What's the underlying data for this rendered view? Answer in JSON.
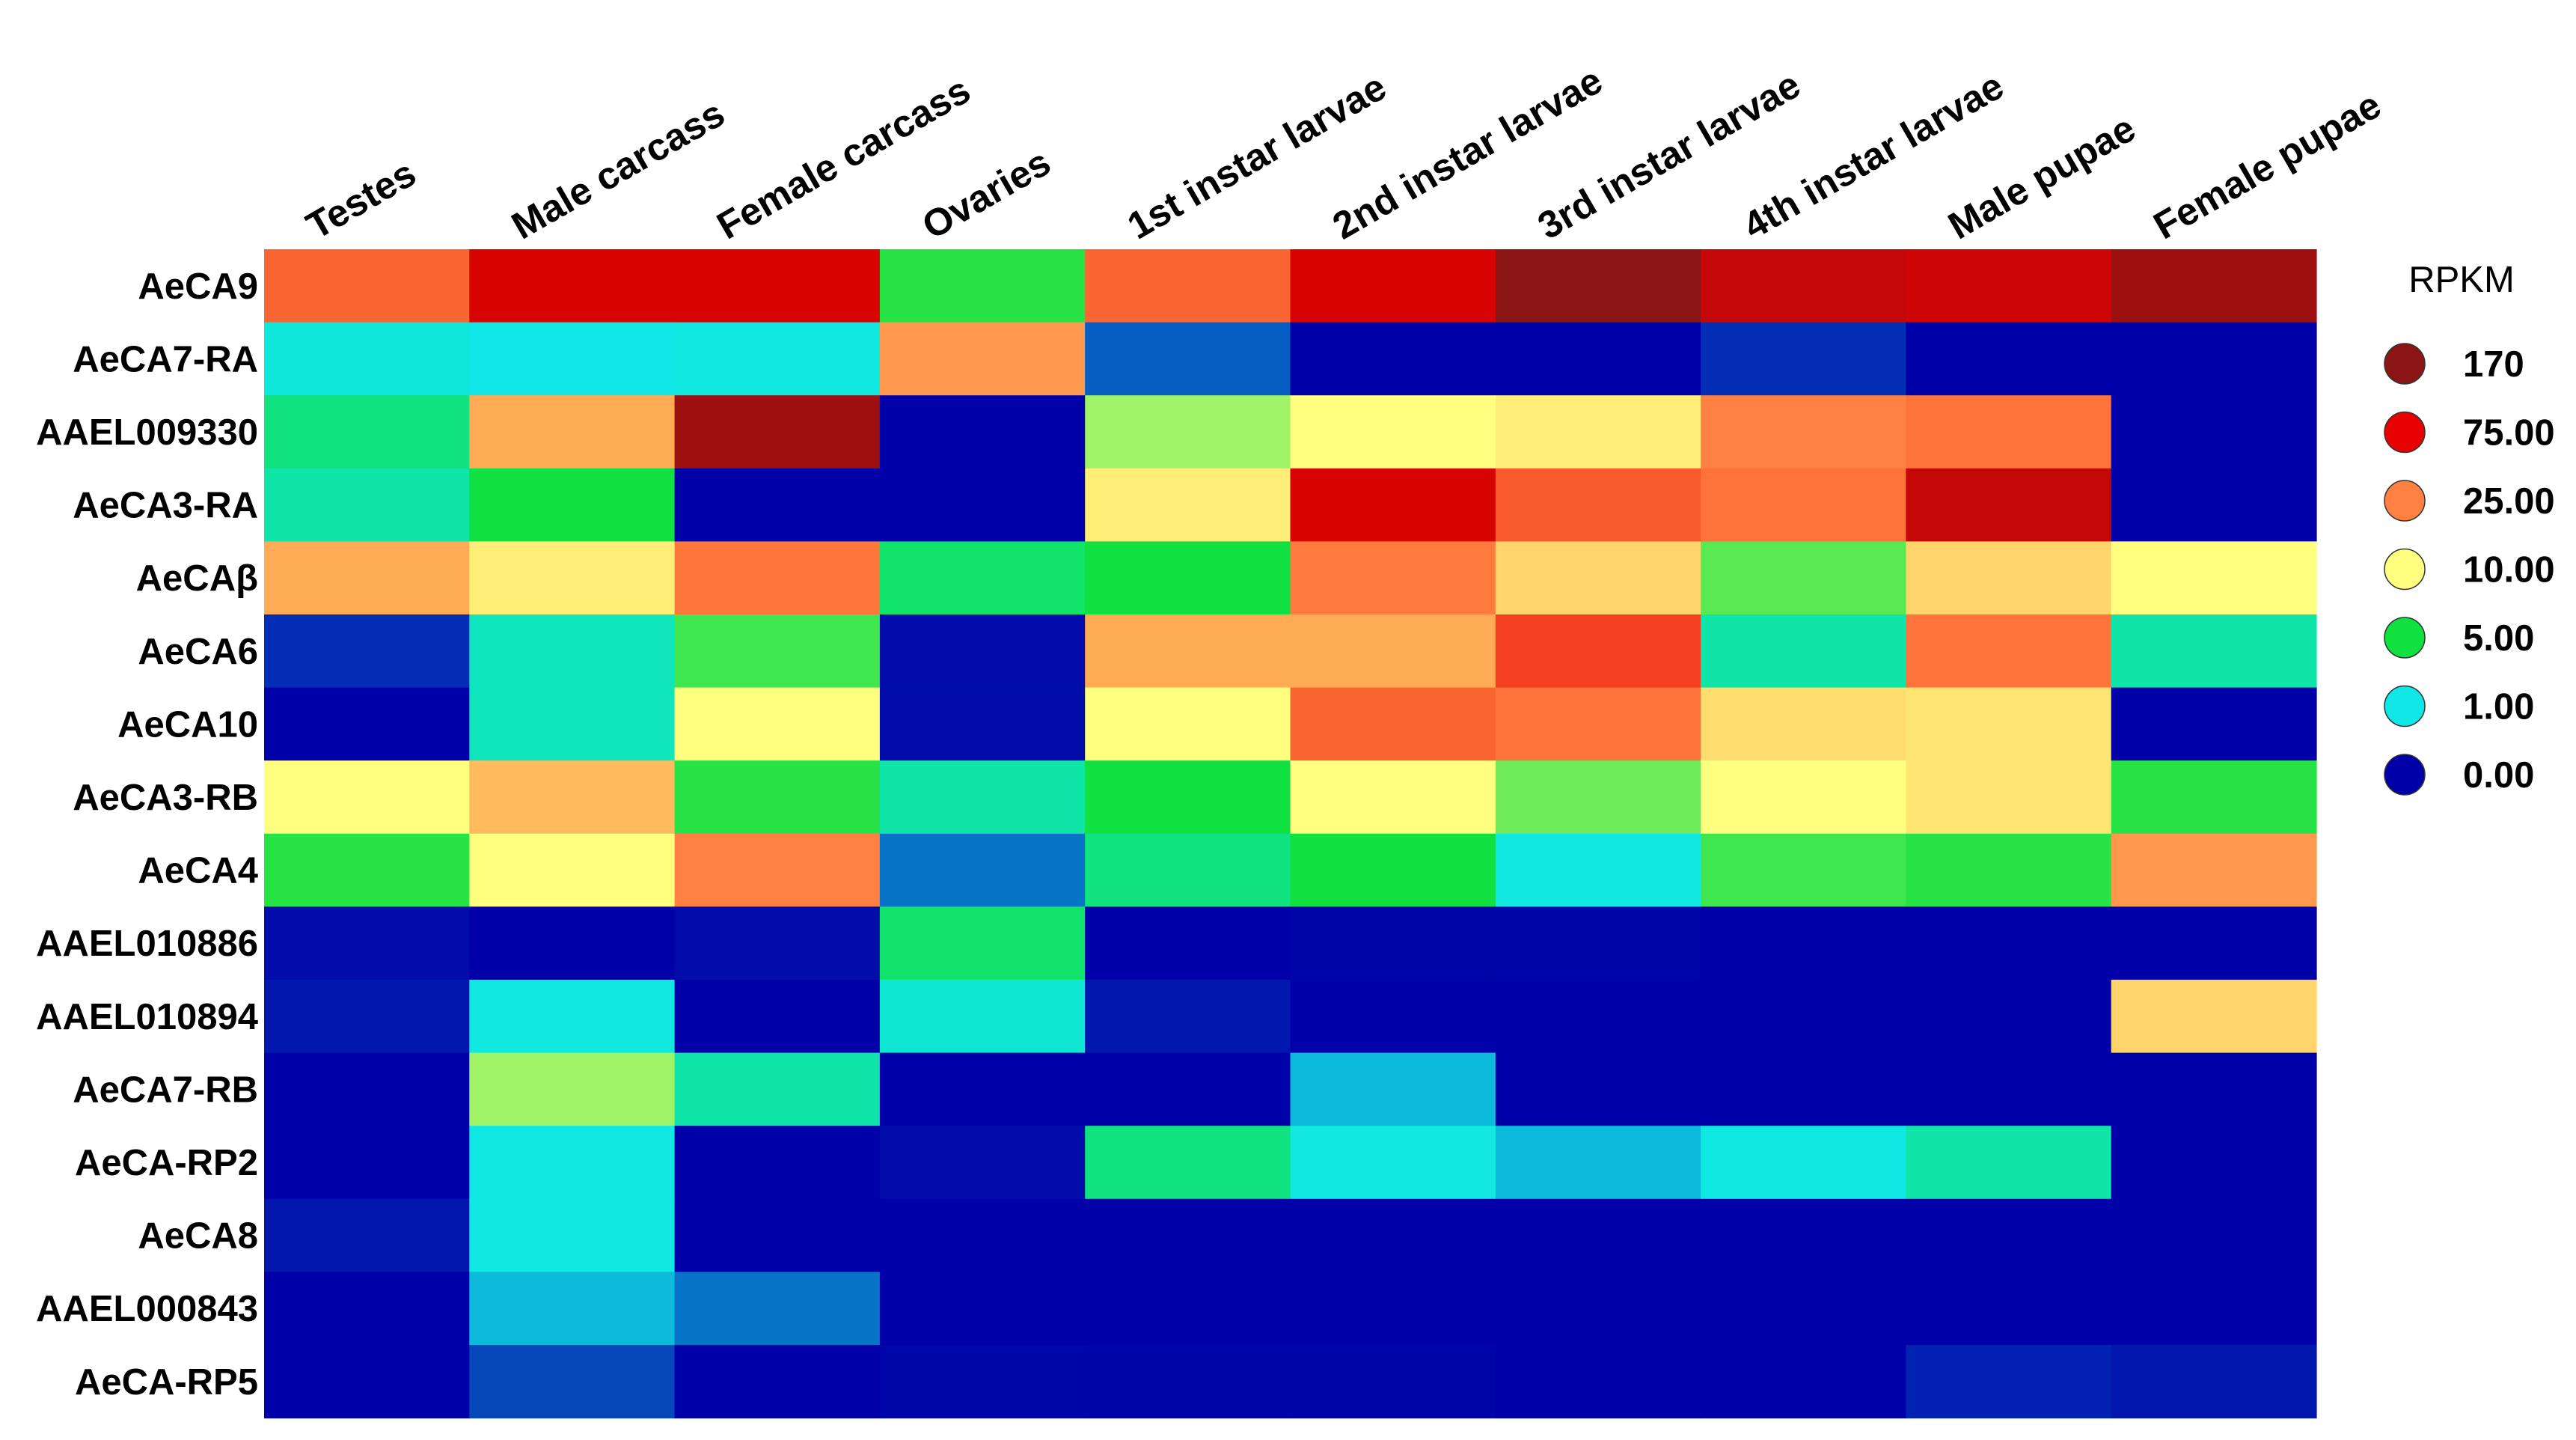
{
  "chart_data": {
    "type": "heatmap",
    "columns": [
      "Testes",
      "Male carcass",
      "Female carcass",
      "Ovaries",
      "1st instar larvae",
      "2nd instar larvae",
      "3rd instar larvae",
      "4th instar larvae",
      "Male pupae",
      "Female pupae"
    ],
    "rows": [
      {
        "label": "AeCA9",
        "values": [
          35,
          90,
          90,
          5.5,
          35,
          90,
          170,
          110,
          100,
          150
        ]
      },
      {
        "label": "AeCA7-RA",
        "values": [
          1.3,
          1.0,
          1.2,
          22,
          0.4,
          0,
          0,
          0.2,
          0,
          0
        ]
      },
      {
        "label": "AAEL009330",
        "values": [
          3.5,
          20,
          150,
          0,
          8,
          10,
          12,
          25,
          30,
          0
        ]
      },
      {
        "label": "AeCA3-RA",
        "values": [
          2.5,
          5,
          0,
          0,
          12,
          90,
          40,
          30,
          110,
          0
        ]
      },
      {
        "label": "AeCAβ",
        "values": [
          20,
          12,
          28,
          4,
          5,
          27,
          15,
          6.5,
          15,
          10
        ]
      },
      {
        "label": "AeCA6",
        "values": [
          0.2,
          2,
          6,
          0.05,
          20,
          20,
          50,
          2.5,
          30,
          2.5
        ]
      },
      {
        "label": "AeCA10",
        "values": [
          0,
          2,
          10,
          0.05,
          10,
          35,
          30,
          14,
          13,
          0
        ]
      },
      {
        "label": "AeCA3-RB",
        "values": [
          10,
          18,
          5.5,
          2.5,
          5,
          10,
          7,
          10,
          13,
          5.5
        ]
      },
      {
        "label": "AeCA4",
        "values": [
          5.5,
          10,
          25,
          0.5,
          3.5,
          5,
          1.2,
          6,
          5.5,
          22
        ]
      },
      {
        "label": "AAEL010886",
        "values": [
          0.05,
          0,
          0.05,
          4,
          0,
          0.02,
          0.02,
          0,
          0,
          0
        ]
      },
      {
        "label": "AAEL010894",
        "values": [
          0.1,
          1.2,
          0,
          1.5,
          0.1,
          0,
          0,
          0,
          0,
          15
        ]
      },
      {
        "label": "AeCA7-RB",
        "values": [
          0,
          8,
          2.5,
          0,
          0,
          0.8,
          0,
          0,
          0,
          0
        ]
      },
      {
        "label": "AeCA-RP2",
        "values": [
          0,
          1.1,
          0,
          0.05,
          3.5,
          1.2,
          0.8,
          1.1,
          2.5,
          0
        ]
      },
      {
        "label": "AeCA8",
        "values": [
          0.1,
          1.1,
          0,
          0,
          0,
          0,
          0,
          0,
          0,
          0
        ]
      },
      {
        "label": "AAEL000843",
        "values": [
          0,
          0.8,
          0.5,
          0,
          0,
          0,
          0,
          0,
          0,
          0
        ]
      },
      {
        "label": "AeCA-RP5",
        "values": [
          0,
          0.3,
          0,
          0.03,
          0.02,
          0.02,
          0,
          0,
          0.15,
          0.1
        ]
      }
    ],
    "legend": {
      "title": "RPKM",
      "placement": "right",
      "entries": [
        {
          "label": "170",
          "value": 170,
          "color": "#8B1414"
        },
        {
          "label": "75.00",
          "value": 75,
          "color": "#E60000"
        },
        {
          "label": "25.00",
          "value": 25,
          "color": "#FF8040"
        },
        {
          "label": "10.00",
          "value": 10,
          "color": "#FFFF80"
        },
        {
          "label": "5.00",
          "value": 5,
          "color": "#10E040"
        },
        {
          "label": "1.00",
          "value": 1,
          "color": "#10E8E8"
        },
        {
          "label": "0.00",
          "value": 0,
          "color": "#0000A8"
        }
      ]
    },
    "grid": false
  }
}
